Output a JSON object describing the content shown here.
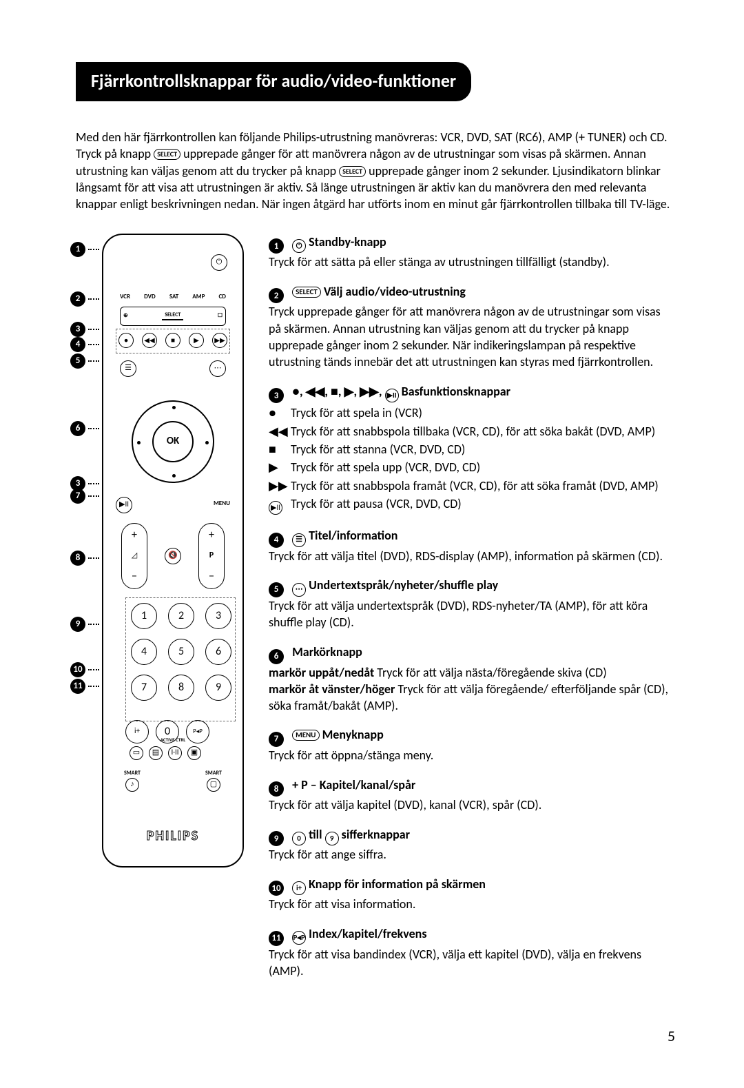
{
  "title": "Fjärrkontrollsknappar för audio/video-funktioner",
  "intro_parts": {
    "p1": "Med den här fjärrkontrollen kan följande Philips-utrustning manövreras: VCR, DVD, SAT (RC6), AMP (+ TUNER) och CD. Tryck på knapp ",
    "select1": "SELECT",
    "p2": " upprepade gånger för att manövrera någon av de utrustningar som visas på skärmen. Annan utrustning kan väljas genom att du trycker på knapp ",
    "select2": "SELECT",
    "p3": " upprepade gånger inom 2 sekunder. Ljusindikatorn blinkar långsamt för att visa att utrustningen är aktiv. Så länge utrustningen är aktiv kan du manövrera den med relevanta knappar enligt beskrivningen nedan. När ingen åtgärd har utförts inom en minut går fjärrkontrollen tillbaka till TV-läge."
  },
  "remote": {
    "devices": [
      "VCR",
      "DVD",
      "SAT",
      "AMP",
      "CD"
    ],
    "select_label": "SELECT",
    "ok": "OK",
    "menu": "MENU",
    "active": "ACTIVE CTRL",
    "smart": "SMART",
    "brand": "PHILIPS",
    "digits": [
      "1",
      "2",
      "3",
      "4",
      "5",
      "6",
      "7",
      "8",
      "9"
    ],
    "zero": "0",
    "rocker_p": "P"
  },
  "callouts_y": [
    12,
    84,
    128,
    150,
    174,
    272,
    370,
    460,
    556,
    622,
    646
  ],
  "entries": [
    {
      "num": "1",
      "icon": "⏻",
      "icon_style": "circ",
      "title": " Standby-knapp",
      "body": "Tryck för att sätta på eller stänga av utrustningen tillfälligt (standby)."
    },
    {
      "num": "2",
      "icon": "SELECT",
      "icon_style": "pill",
      "title": " Välj audio/video-utrustning",
      "body": "Tryck upprepade gånger för att manövrera någon av de utrustningar som visas på skärmen. Annan utrustning kan väljas genom att du trycker på knapp upprepade gånger inom 2 sekunder. När indikeringslampan på respektive utrustning tänds innebär det att utrustningen kan styras med fjärrkontrollen."
    },
    {
      "num": "3",
      "title_syms": "●, ◀◀, ■, ▶, ▶▶, ",
      "title_pause_icon": "▶II",
      "title": " Basfunktionsknappar",
      "subs": [
        {
          "sym": "●",
          "txt": "Tryck för att spela in (VCR)"
        },
        {
          "sym": "◀◀",
          "txt": "Tryck för att snabbspola tillbaka (VCR, CD), för att söka bakåt (DVD, AMP)"
        },
        {
          "sym": "■",
          "txt": "Tryck för att stanna (VCR, DVD, CD)"
        },
        {
          "sym": "▶",
          "txt": "Tryck för att spela upp (VCR, DVD, CD)"
        },
        {
          "sym": "▶▶",
          "txt": "Tryck för att snabbspola framåt (VCR, CD), för att söka framåt (DVD, AMP)"
        },
        {
          "sym": "▶II",
          "txt": "Tryck för att pausa (VCR, DVD, CD)",
          "circ": true
        }
      ]
    },
    {
      "num": "4",
      "icon": "☰",
      "icon_style": "circ",
      "title": " Titel/information",
      "body": "Tryck för att välja titel (DVD), RDS-display (AMP), information på skärmen (CD)."
    },
    {
      "num": "5",
      "icon": "⋯",
      "icon_style": "circ",
      "title": " Undertextspråk/nyheter/shuffle play",
      "body": "Tryck för att välja undertextspråk (DVD), RDS-nyheter/TA (AMP), för att köra shuffle play (CD)."
    },
    {
      "num": "6",
      "title": "Markörknapp",
      "body_rich": [
        {
          "b": "markör uppåt/nedåt",
          "t": " Tryck för att välja nästa/föregående skiva (CD)"
        },
        {
          "b": "markör åt vänster/höger",
          "t": " Tryck för att välja föregående/ efterföljande spår (CD), söka framåt/bakåt (AMP)."
        }
      ]
    },
    {
      "num": "7",
      "icon": "MENU",
      "icon_style": "pill",
      "title": " Menyknapp",
      "body": "Tryck för att öppna/stänga meny."
    },
    {
      "num": "8",
      "title": "+ P – Kapitel/kanal/spår",
      "body": "Tryck för att välja kapitel (DVD), kanal (VCR), spår (CD)."
    },
    {
      "num": "9",
      "title_pre_icon": "0",
      "title_mid": " till ",
      "title_post_icon": "9",
      "title": " sifferknappar",
      "body": "Tryck för att ange siffra."
    },
    {
      "num": "10",
      "icon": "i+",
      "icon_style": "circ",
      "title": " Knapp för information på skärmen",
      "body": "Tryck för att visa information."
    },
    {
      "num": "11",
      "icon": "P◂P",
      "icon_style": "circ",
      "title": " Index/kapitel/frekvens",
      "body": "Tryck för att visa bandindex (VCR), välja ett kapitel (DVD), välja en frekvens (AMP)."
    }
  ],
  "page_number": "5"
}
